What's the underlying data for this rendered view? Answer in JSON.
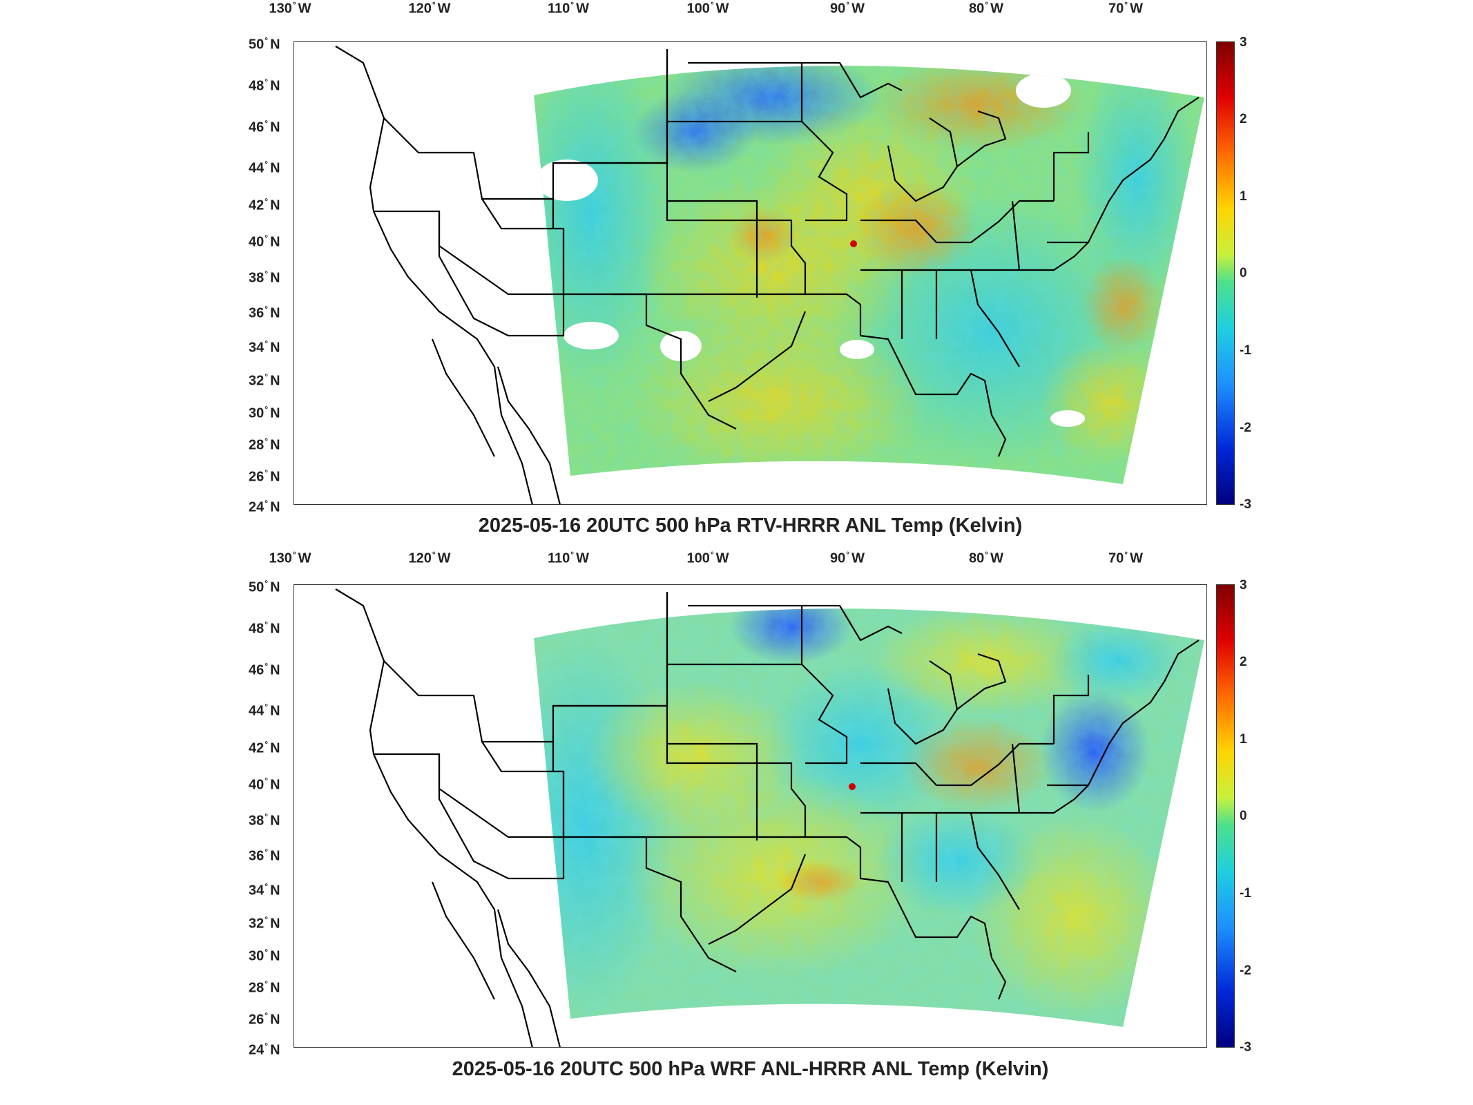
{
  "panels": [
    {
      "title": "2025-05-16 20UTC 500 hPa RTV-HRRR ANL Temp (Kelvin)",
      "lon_ticks": [
        "130",
        "120",
        "110",
        "100",
        "90",
        "80",
        "70"
      ],
      "lon_suffix": "W",
      "lat_ticks": [
        "50",
        "48",
        "46",
        "44",
        "42",
        "40",
        "38",
        "36",
        "34",
        "32",
        "30",
        "28",
        "26",
        "24"
      ],
      "lat_suffix": "N",
      "colorbar_ticks": [
        "3",
        "2",
        "1",
        "0",
        "-1",
        "-2",
        "-3"
      ]
    },
    {
      "title": "2025-05-16 20UTC 500 hPa WRF ANL-HRRR ANL Temp (Kelvin)",
      "lon_ticks": [
        "130",
        "120",
        "110",
        "100",
        "90",
        "80",
        "70"
      ],
      "lon_suffix": "W",
      "lat_ticks": [
        "50",
        "48",
        "46",
        "44",
        "42",
        "40",
        "38",
        "36",
        "34",
        "32",
        "30",
        "28",
        "26",
        "24"
      ],
      "lat_suffix": "N",
      "colorbar_ticks": [
        "3",
        "2",
        "1",
        "0",
        "-1",
        "-2",
        "-3"
      ]
    }
  ],
  "colormap": [
    "#00007f",
    "#0028d8",
    "#1e90ff",
    "#1ecfe0",
    "#4de08c",
    "#c8f03c",
    "#ffd400",
    "#ff6a00",
    "#e00000",
    "#7f0000"
  ],
  "colorbar_range": [
    -3,
    3
  ]
}
